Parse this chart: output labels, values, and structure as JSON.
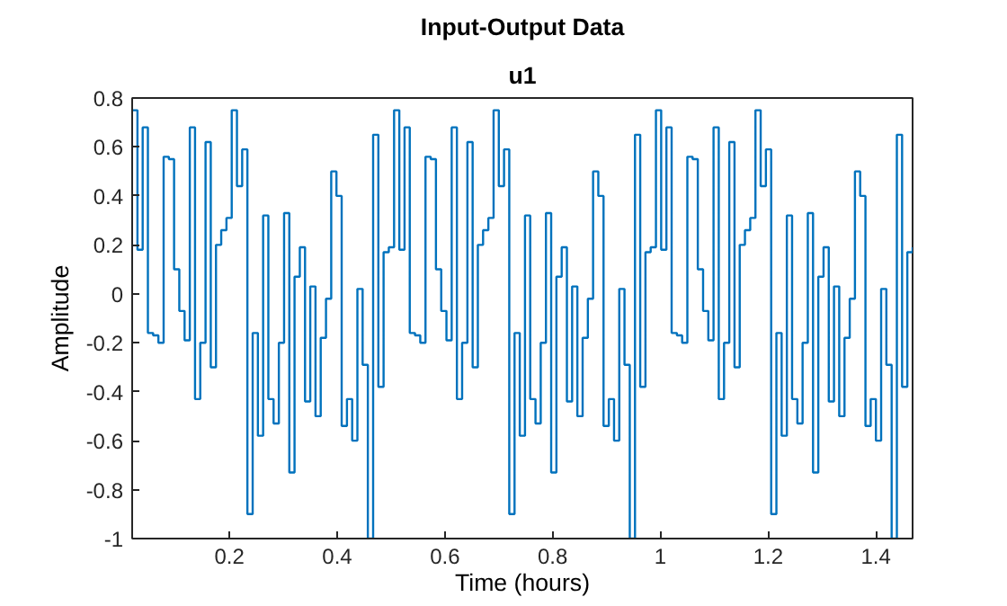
{
  "chart_data": {
    "type": "step",
    "title": "Input-Output Data",
    "subtitle": "u1",
    "xlabel": "Time (hours)",
    "ylabel": "Amplitude",
    "x": [
      0.0194,
      0.0292,
      0.0389,
      0.0486,
      0.0583,
      0.0681,
      0.0778,
      0.0875,
      0.0972,
      0.1069,
      0.1167,
      0.1264,
      0.1361,
      0.1458,
      0.1556,
      0.1653,
      0.175,
      0.1847,
      0.1944,
      0.2042,
      0.2139,
      0.2236,
      0.2333,
      0.2431,
      0.2528,
      0.2625,
      0.2722,
      0.2819,
      0.2917,
      0.3014,
      0.3111,
      0.3208,
      0.3306,
      0.3403,
      0.35,
      0.3597,
      0.3694,
      0.3792,
      0.3889,
      0.3986,
      0.4083,
      0.4181,
      0.4278,
      0.4375,
      0.4472,
      0.4569,
      0.4667,
      0.4764,
      0.4861,
      0.4958,
      0.5056,
      0.5153,
      0.525,
      0.5347,
      0.5444,
      0.5542,
      0.5639,
      0.5736,
      0.5833,
      0.5931,
      0.6028,
      0.6125,
      0.6222,
      0.6319,
      0.6417,
      0.6514,
      0.6611,
      0.6708,
      0.6806,
      0.6903,
      0.7,
      0.7097,
      0.7194,
      0.7292,
      0.7389,
      0.7486,
      0.7583,
      0.7681,
      0.7778,
      0.7875,
      0.7972,
      0.8069,
      0.8167,
      0.8264,
      0.8361,
      0.8458,
      0.8556,
      0.8653,
      0.875,
      0.8847,
      0.8944,
      0.9042,
      0.9139,
      0.9236,
      0.9333,
      0.9431,
      0.9528,
      0.9625,
      0.9722,
      0.9819,
      0.9917,
      1.0014,
      1.0111,
      1.0208,
      1.0306,
      1.0403,
      1.05,
      1.0597,
      1.0694,
      1.0792,
      1.0889,
      1.0986,
      1.1083,
      1.1181,
      1.1278,
      1.1375,
      1.1472,
      1.1569,
      1.1667,
      1.1764,
      1.1861,
      1.1958,
      1.2056,
      1.2153,
      1.225,
      1.2347,
      1.2444,
      1.2542,
      1.2639,
      1.2736,
      1.2833,
      1.2931,
      1.3028,
      1.3125,
      1.3222,
      1.3319,
      1.3417,
      1.3514,
      1.3611,
      1.3708,
      1.3806,
      1.3903,
      1.4,
      1.4097,
      1.4194,
      1.4292,
      1.4389,
      1.4486,
      1.4583,
      1.4681
    ],
    "series": [
      {
        "color": "#0072bd",
        "values": [
          0.75,
          0.18,
          0.68,
          -0.16,
          -0.17,
          -0.2,
          0.56,
          0.55,
          0.1,
          -0.07,
          -0.19,
          0.68,
          -0.43,
          -0.2,
          0.62,
          -0.3,
          0.2,
          0.26,
          0.31,
          0.75,
          0.44,
          0.59,
          -0.9,
          -0.16,
          -0.58,
          0.32,
          -0.43,
          -0.53,
          -0.2,
          0.33,
          -0.73,
          0.07,
          0.19,
          -0.44,
          0.03,
          -0.5,
          -0.18,
          -0.02,
          0.5,
          0.4,
          -0.54,
          -0.43,
          -0.6,
          0.02,
          -0.29,
          -1.0,
          0.65,
          -0.38,
          0.17,
          0.19,
          0.75,
          0.18,
          0.68,
          -0.16,
          -0.17,
          -0.2,
          0.56,
          0.55,
          0.1,
          -0.07,
          -0.19,
          0.68,
          -0.43,
          -0.2,
          0.62,
          -0.3,
          0.2,
          0.26,
          0.31,
          0.75,
          0.44,
          0.59,
          -0.9,
          -0.16,
          -0.58,
          0.32,
          -0.43,
          -0.53,
          -0.2,
          0.33,
          -0.73,
          0.07,
          0.19,
          -0.44,
          0.03,
          -0.5,
          -0.18,
          -0.02,
          0.5,
          0.4,
          -0.54,
          -0.43,
          -0.6,
          0.02,
          -0.29,
          -1.0,
          0.65,
          -0.38,
          0.17,
          0.19,
          0.75,
          0.18,
          0.68,
          -0.16,
          -0.17,
          -0.2,
          0.56,
          0.55,
          0.1,
          -0.07,
          -0.19,
          0.68,
          -0.43,
          -0.2,
          0.62,
          -0.3,
          0.2,
          0.26,
          0.31,
          0.75,
          0.44,
          0.59,
          -0.9,
          -0.16,
          -0.58,
          0.32,
          -0.43,
          -0.53,
          -0.2,
          0.33,
          -0.73,
          0.07,
          0.19,
          -0.44,
          0.03,
          -0.5,
          -0.18,
          -0.02,
          0.5,
          0.4,
          -0.54,
          -0.43,
          -0.6,
          0.02,
          -0.29,
          -1.0,
          0.65,
          -0.38,
          0.17,
          0.19
        ]
      }
    ],
    "xlim": [
      0.0194,
      1.4681
    ],
    "ylim": [
      -1,
      0.8
    ],
    "xticks": [
      0.2,
      0.4,
      0.6,
      0.8,
      1,
      1.2,
      1.4
    ],
    "yticks": [
      -1,
      -0.8,
      -0.6,
      -0.4,
      -0.2,
      0,
      0.2,
      0.4,
      0.6,
      0.8
    ],
    "grid": false
  }
}
